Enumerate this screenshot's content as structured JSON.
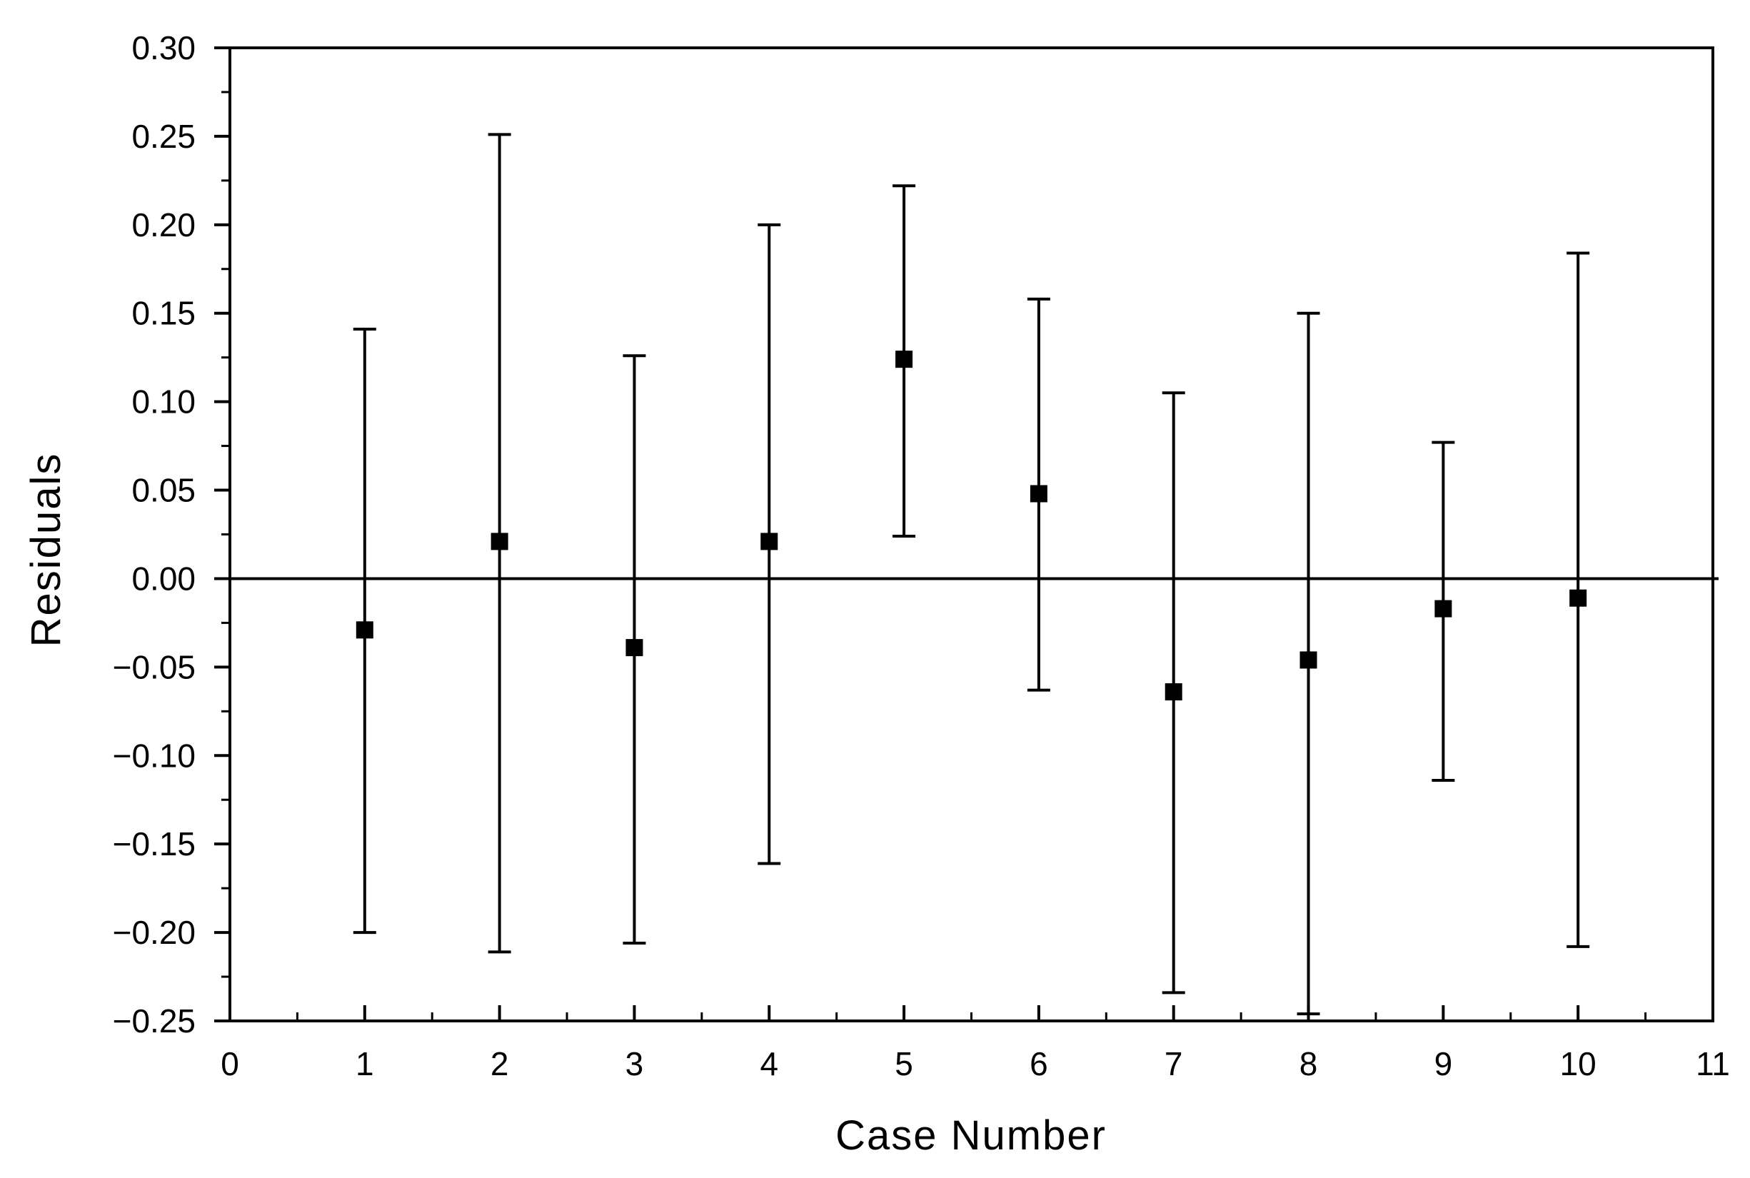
{
  "chart_data": {
    "type": "scatter",
    "title": "",
    "xlabel": "Case Number",
    "ylabel": "Residuals",
    "xlim": [
      0,
      11
    ],
    "ylim": [
      -0.25,
      0.3
    ],
    "x_ticks": [
      0,
      1,
      2,
      3,
      4,
      5,
      6,
      7,
      8,
      9,
      10,
      11
    ],
    "x_tick_labels": [
      "0",
      "1",
      "2",
      "3",
      "4",
      "5",
      "6",
      "7",
      "8",
      "9",
      "10",
      "11"
    ],
    "y_ticks": [
      -0.25,
      -0.2,
      -0.15,
      -0.1,
      -0.05,
      0.0,
      0.05,
      0.1,
      0.15,
      0.2,
      0.25,
      0.3
    ],
    "y_tick_labels": [
      "−0.25",
      "−0.20",
      "−0.15",
      "−0.10",
      "−0.05",
      "0.00",
      "0.05",
      "0.10",
      "0.15",
      "0.20",
      "0.25",
      "0.30"
    ],
    "reference_line_y": 0,
    "grid": false,
    "marker": "square",
    "color": "#000000",
    "series": [
      {
        "x": [
          1,
          2,
          3,
          4,
          5,
          6,
          7,
          8,
          9,
          10
        ],
        "y": [
          -0.029,
          0.021,
          -0.039,
          0.021,
          0.124,
          0.048,
          -0.064,
          -0.046,
          -0.017,
          -0.011
        ],
        "error_upper": [
          0.141,
          0.251,
          0.126,
          0.2,
          0.222,
          0.158,
          0.105,
          0.15,
          0.077,
          0.184
        ],
        "error_lower": [
          -0.2,
          -0.211,
          -0.206,
          -0.161,
          0.024,
          -0.063,
          -0.234,
          -0.246,
          -0.114,
          -0.208
        ]
      }
    ]
  }
}
